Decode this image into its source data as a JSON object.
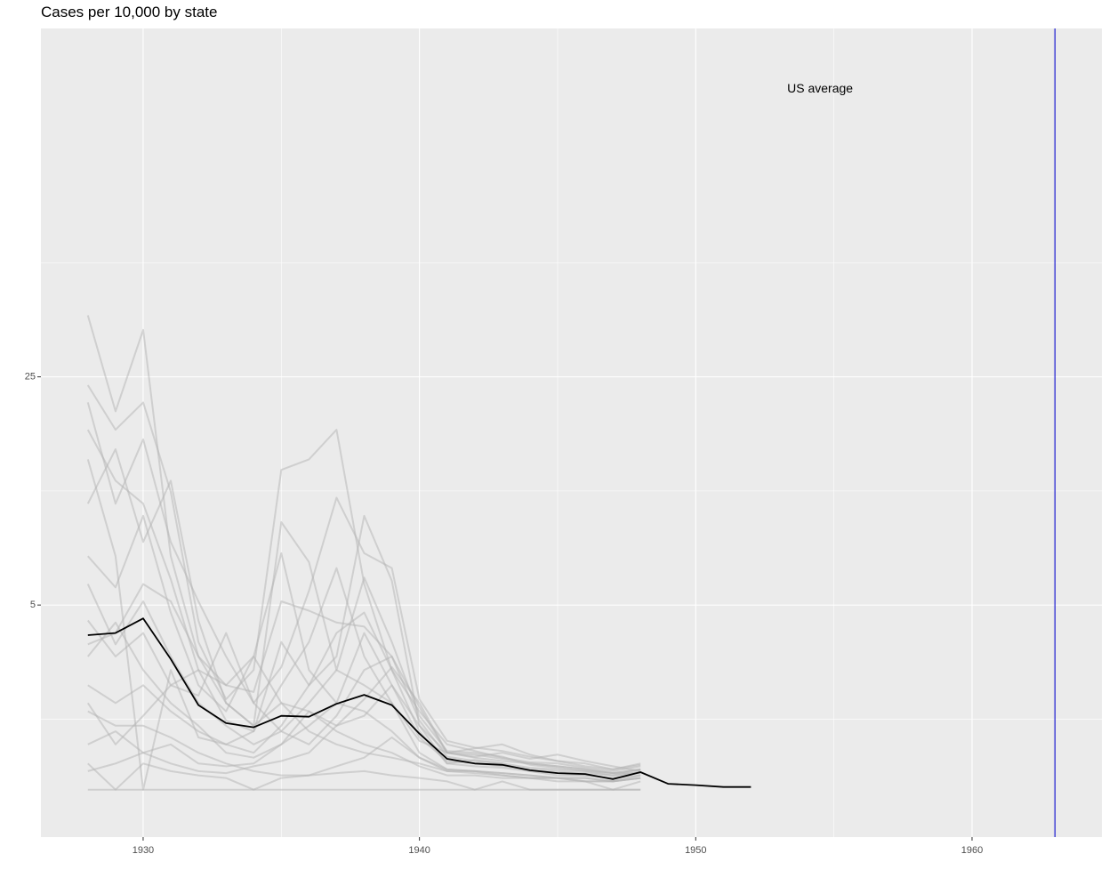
{
  "chart_data": {
    "type": "line",
    "title": "Cases per 10,000 by state",
    "xlabel": "",
    "ylabel": "",
    "x_axis": {
      "range": [
        1926.3,
        1964.7
      ],
      "ticks": [
        1930,
        1940,
        1950,
        1960
      ],
      "tick_labels": [
        "1930",
        "1940",
        "1950",
        "1960"
      ]
    },
    "y_axis": {
      "scale": "sqrt",
      "range": [
        -0.33,
        85
      ],
      "ticks": [
        5,
        25
      ],
      "tick_labels": [
        "5",
        "25"
      ]
    },
    "grid": true,
    "background": "#ebebeb",
    "annotations": [
      {
        "text": "US average",
        "x": 1954.5,
        "y": 72
      }
    ],
    "vlines": [
      {
        "x": 1963,
        "color": "#0000cc"
      }
    ],
    "average_series": {
      "name": "US average",
      "color": "#000000",
      "x": [
        1928,
        1929,
        1930,
        1931,
        1932,
        1933,
        1934,
        1935,
        1936,
        1937,
        1938,
        1939,
        1940,
        1941,
        1942,
        1943,
        1944,
        1945,
        1946,
        1947,
        1948,
        1949,
        1950,
        1951,
        1952
      ],
      "y": [
        3.5,
        3.6,
        4.3,
        2.5,
        1.05,
        0.65,
        0.57,
        0.8,
        0.78,
        1.08,
        1.32,
        1.05,
        0.46,
        0.14,
        0.1,
        0.09,
        0.055,
        0.04,
        0.036,
        0.016,
        0.045,
        0.005,
        0.003,
        0.001,
        0.001
      ]
    },
    "state_series_color": "#b3b3b3",
    "state_series": [
      {
        "x": [
          1928,
          1929,
          1930,
          1931,
          1932,
          1933,
          1934,
          1935,
          1936,
          1937,
          1938,
          1939,
          1940,
          1941,
          1942,
          1943,
          1944,
          1945,
          1946,
          1947,
          1948
        ],
        "y": [
          33,
          21,
          31,
          8,
          2.6,
          1.6,
          1.4,
          5.2,
          4.7,
          4.1,
          3.9,
          2.6,
          1.0,
          0.2,
          0.18,
          0.14,
          0.1,
          0.08,
          0.06,
          0.04,
          0.06
        ]
      },
      {
        "x": [
          1928,
          1929,
          1930,
          1931,
          1932,
          1933,
          1934,
          1935,
          1936,
          1937,
          1938,
          1939,
          1940,
          1941,
          1942,
          1943,
          1944,
          1945,
          1946,
          1947,
          1948
        ],
        "y": [
          24,
          19,
          22,
          13,
          3.2,
          1.2,
          2.1,
          15,
          16,
          19,
          6.2,
          2.1,
          0.9,
          0.3,
          0.22,
          0.15,
          0.11,
          0.1,
          0.07,
          0.05,
          0.08
        ]
      },
      {
        "x": [
          1928,
          1929,
          1930,
          1931,
          1932,
          1933,
          1934,
          1935,
          1936,
          1937,
          1938,
          1939,
          1940,
          1941,
          1942,
          1943,
          1944,
          1945,
          1946,
          1947,
          1948
        ],
        "y": [
          22,
          12,
          18,
          9,
          5.2,
          2.6,
          1.1,
          2.2,
          5.8,
          12.5,
          8.2,
          7.2,
          1.2,
          0.35,
          0.26,
          0.22,
          0.16,
          0.12,
          0.1,
          0.06,
          0.09
        ]
      },
      {
        "x": [
          1928,
          1929,
          1930,
          1931,
          1932,
          1933,
          1934,
          1935,
          1936,
          1937,
          1938,
          1939,
          1940,
          1941,
          1942,
          1943,
          1944,
          1945,
          1946,
          1947,
          1948
        ],
        "y": [
          19,
          14,
          12,
          6.5,
          2.1,
          0.7,
          0.5,
          3.2,
          1.6,
          2.6,
          11,
          6.4,
          0.6,
          0.1,
          0.13,
          0.1,
          0.05,
          0.03,
          0.03,
          0.02,
          0.05
        ]
      },
      {
        "x": [
          1928,
          1929,
          1930,
          1931,
          1932,
          1933,
          1934,
          1935,
          1936,
          1937,
          1938,
          1939,
          1940,
          1941,
          1942,
          1943,
          1944,
          1945,
          1946,
          1947,
          1948
        ],
        "y": [
          12,
          17,
          9,
          14,
          4.2,
          1.1,
          0.6,
          10.5,
          7.6,
          2.1,
          6.6,
          3.2,
          0.8,
          0.22,
          0.2,
          0.16,
          0.09,
          0.07,
          0.05,
          0.04,
          0.04
        ]
      },
      {
        "x": [
          1928,
          1929,
          1930,
          1931,
          1932,
          1933,
          1934,
          1935,
          1936,
          1937,
          1938,
          1939,
          1940,
          1941,
          1942,
          1943,
          1944,
          1945,
          1946,
          1947,
          1948
        ],
        "y": [
          8,
          6,
          11,
          4.6,
          1.6,
          0.9,
          2.6,
          8.2,
          2.1,
          1.1,
          3.6,
          1.6,
          0.4,
          0.12,
          0.1,
          0.08,
          0.06,
          0.05,
          0.04,
          0.03,
          0.04
        ]
      },
      {
        "x": [
          1928,
          1929,
          1930,
          1931,
          1932,
          1933,
          1934,
          1935,
          1936,
          1937,
          1938,
          1939,
          1940,
          1941,
          1942,
          1943,
          1944,
          1945,
          1946,
          1947,
          1948
        ],
        "y": [
          16,
          8,
          0,
          2.1,
          0.4,
          0.3,
          0.5,
          1.6,
          3.2,
          7.2,
          2.6,
          1.1,
          0.35,
          0.2,
          0.25,
          0.3,
          0.18,
          0.12,
          0.08,
          0.06,
          0.1
        ]
      },
      {
        "x": [
          1928,
          1929,
          1930,
          1931,
          1932,
          1933,
          1934,
          1935,
          1936,
          1937,
          1938,
          1939,
          1940,
          1941,
          1942,
          1943,
          1944,
          1945,
          1946,
          1947,
          1948
        ],
        "y": [
          6.2,
          3.1,
          5.2,
          2.6,
          1.1,
          0.6,
          0.3,
          0.5,
          1.1,
          2.1,
          1.6,
          1.1,
          0.2,
          0.06,
          0.05,
          0.04,
          0.03,
          0.02,
          0.02,
          0.01,
          0.03
        ]
      },
      {
        "x": [
          1928,
          1929,
          1930,
          1931,
          1932,
          1933,
          1934,
          1935,
          1936,
          1937,
          1938,
          1939,
          1940,
          1941,
          1942,
          1943,
          1944,
          1945,
          1946,
          1947,
          1948
        ],
        "y": [
          4.2,
          2.6,
          3.6,
          1.6,
          1.3,
          3.6,
          1.1,
          0.5,
          0.3,
          0.8,
          2.1,
          2.6,
          0.7,
          0.16,
          0.12,
          0.1,
          0.07,
          0.06,
          0.05,
          0.03,
          0.06
        ]
      },
      {
        "x": [
          1928,
          1929,
          1930,
          1931,
          1932,
          1933,
          1934,
          1935,
          1936,
          1937,
          1938,
          1939,
          1940,
          1941,
          1942,
          1943,
          1944,
          1945,
          1946,
          1947,
          1948
        ],
        "y": [
          2.6,
          4.1,
          2.1,
          1.1,
          0.6,
          0.2,
          0.15,
          0.3,
          0.6,
          1.1,
          0.9,
          0.5,
          0.15,
          0.05,
          0.04,
          0.03,
          0.02,
          0.02,
          0.01,
          0.01,
          0.02
        ]
      },
      {
        "x": [
          1928,
          1929,
          1930,
          1931,
          1932,
          1933,
          1934,
          1935,
          1936,
          1937,
          1938,
          1939,
          1940,
          1941,
          1942,
          1943,
          1944,
          1945,
          1946,
          1947,
          1948
        ],
        "y": [
          1.6,
          1.1,
          1.6,
          0.9,
          0.5,
          0.3,
          0.2,
          0.6,
          1.6,
          3.6,
          4.6,
          2.1,
          0.5,
          0.1,
          0.08,
          0.07,
          0.05,
          0.04,
          0.03,
          0.02,
          0.03
        ]
      },
      {
        "x": [
          1928,
          1929,
          1930,
          1931,
          1932,
          1933,
          1934,
          1935,
          1936,
          1937,
          1938,
          1939,
          1940,
          1941,
          1942,
          1943,
          1944,
          1945,
          1946,
          1947,
          1948
        ],
        "y": [
          0.9,
          0.6,
          0.6,
          0.4,
          0.2,
          0.1,
          0.05,
          0.03,
          0.03,
          0.08,
          0.15,
          0.4,
          0.15,
          0.06,
          0.05,
          0.03,
          0.02,
          0.02,
          0.01,
          0.01,
          0.02
        ]
      },
      {
        "x": [
          1928,
          1929,
          1930,
          1931,
          1932,
          1933,
          1934,
          1935,
          1936,
          1937,
          1938,
          1939,
          1940,
          1941,
          1942,
          1943,
          1944,
          1945,
          1946,
          1947,
          1948
        ],
        "y": [
          0.3,
          0.5,
          0.2,
          0.3,
          0.1,
          0.08,
          0.1,
          0.3,
          0.9,
          0.5,
          0.3,
          0.2,
          0.08,
          0.03,
          0.03,
          0.02,
          0.02,
          0.01,
          0.01,
          0.0,
          0.01
        ]
      },
      {
        "x": [
          1928,
          1929,
          1930,
          1931,
          1932,
          1933,
          1934,
          1935,
          1936,
          1937,
          1938,
          1939,
          1940,
          1941,
          1942,
          1943,
          1944,
          1945,
          1946,
          1947,
          1948
        ],
        "y": [
          0.1,
          0.0,
          0.1,
          0.05,
          0.03,
          0.02,
          0.0,
          0.02,
          0.03,
          0.04,
          0.05,
          0.03,
          0.02,
          0.01,
          0.0,
          0.01,
          0.0,
          0.0,
          0.0,
          0.0,
          0.0
        ]
      },
      {
        "x": [
          1928,
          1929,
          1930,
          1931,
          1932,
          1933,
          1934,
          1935,
          1936,
          1937,
          1938,
          1939,
          1940,
          1941,
          1942,
          1943,
          1944,
          1945,
          1946,
          1947,
          1948
        ],
        "y": [
          0.05,
          0.1,
          0.2,
          0.1,
          0.05,
          0.04,
          0.08,
          0.12,
          0.2,
          0.6,
          1.2,
          2.2,
          1.1,
          0.2,
          0.15,
          0.12,
          0.1,
          0.08,
          0.06,
          0.04,
          0.06
        ]
      },
      {
        "x": [
          1928,
          1929,
          1930,
          1931,
          1932,
          1933,
          1934,
          1935,
          1936,
          1937,
          1938,
          1939,
          1940,
          1941,
          1942,
          1943,
          1944,
          1945,
          1946,
          1947,
          1948
        ],
        "y": [
          3.1,
          3.6,
          6.2,
          5.2,
          2.6,
          1.1,
          0.6,
          1.1,
          0.9,
          0.6,
          0.8,
          1.6,
          0.6,
          0.2,
          0.16,
          0.2,
          0.14,
          0.18,
          0.12,
          0.08,
          0.05
        ]
      },
      {
        "x": [
          1928,
          1929,
          1930,
          1931,
          1932,
          1933,
          1934,
          1935,
          1936,
          1937,
          1938,
          1939,
          1940,
          1941,
          1942,
          1943,
          1944,
          1945,
          1946,
          1947,
          1948
        ],
        "y": [
          1.1,
          0.3,
          0.8,
          1.6,
          2.1,
          1.6,
          2.6,
          1.1,
          0.5,
          0.3,
          0.2,
          0.15,
          0.1,
          0.05,
          0.05,
          0.04,
          0.03,
          0.02,
          0.02,
          0.01,
          0.02
        ]
      },
      {
        "x": [
          1928,
          1929,
          1930,
          1931,
          1932,
          1933,
          1934,
          1935,
          1936,
          1937,
          1938,
          1939,
          1940,
          1941,
          1942,
          1943,
          1944,
          1945,
          1946,
          1947,
          1948
        ],
        "y": [
          0.0,
          0.0,
          0.0,
          0.0,
          0.0,
          0.0,
          0.0,
          0.0,
          0.0,
          0.0,
          0.0,
          0.0,
          0.0,
          0.0,
          0.0,
          0.0,
          0.0,
          0.0,
          0.0,
          0.0,
          0.0
        ]
      }
    ]
  }
}
